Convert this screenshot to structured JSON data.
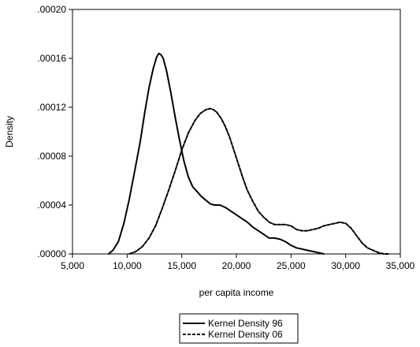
{
  "chart_data": {
    "type": "line",
    "title": "",
    "xlabel": "per capita income",
    "ylabel": "Density",
    "xlim": [
      5000,
      35000
    ],
    "ylim": [
      0,
      0.0002
    ],
    "x_ticks": [
      5000,
      10000,
      15000,
      20000,
      25000,
      30000,
      35000
    ],
    "x_tick_labels": [
      "5,000",
      "10,000",
      "15,000",
      "20,000",
      "25,000",
      "30,000",
      "35,000"
    ],
    "y_ticks": [
      0,
      4e-05,
      8e-05,
      0.00012,
      0.00016,
      0.0002
    ],
    "y_tick_labels": [
      ".00000",
      ".00004",
      ".00008",
      ".00012",
      ".00016",
      ".00020"
    ],
    "grid": false,
    "legend_position": "bottom-center",
    "series": [
      {
        "name": "Kernel Density 96",
        "style": "solid",
        "color": "#000000",
        "x": [
          8300,
          8700,
          9200,
          9700,
          10200,
          10700,
          11200,
          11600,
          12000,
          12400,
          12700,
          12900,
          13100,
          13300,
          13600,
          14000,
          14400,
          14800,
          15200,
          15600,
          16000,
          16400,
          16800,
          17200,
          17600,
          18000,
          18500,
          19000,
          19500,
          20000,
          20500,
          21000,
          21500,
          22000,
          22500,
          23000,
          23500,
          24000,
          24500,
          25000,
          25500,
          26000,
          26500,
          27000,
          27500,
          28000
        ],
        "y": [
          0,
          3e-06,
          1e-05,
          2.5e-05,
          4.5e-05,
          6.8e-05,
          9.2e-05,
          0.000115,
          0.000136,
          0.000152,
          0.000161,
          0.000164,
          0.000163,
          0.00016,
          0.00015,
          0.000132,
          0.000112,
          9.3e-05,
          7.6e-05,
          6.3e-05,
          5.5e-05,
          5.1e-05,
          4.7e-05,
          4.4e-05,
          4.1e-05,
          4e-05,
          4e-05,
          3.8e-05,
          3.5e-05,
          3.2e-05,
          2.9e-05,
          2.6e-05,
          2.2e-05,
          1.9e-05,
          1.6e-05,
          1.3e-05,
          1.3e-05,
          1.2e-05,
          1e-05,
          7e-06,
          5e-06,
          4e-06,
          3e-06,
          2e-06,
          1e-06,
          0
        ]
      },
      {
        "name": "Kernel Density 06",
        "style": "dashed",
        "color": "#000000",
        "x": [
          10200,
          10800,
          11400,
          12000,
          12600,
          13200,
          13800,
          14400,
          15000,
          15600,
          16200,
          16700,
          17200,
          17600,
          17900,
          18200,
          18600,
          19000,
          19400,
          19800,
          20200,
          20600,
          21000,
          21500,
          22000,
          22500,
          23000,
          23500,
          24000,
          24500,
          25000,
          25500,
          26000,
          26500,
          27000,
          27500,
          28000,
          28500,
          29000,
          29500,
          30000,
          30500,
          31000,
          31500,
          32000,
          32500,
          33000,
          33500,
          33900
        ],
        "y": [
          0,
          2e-06,
          6e-06,
          1.3e-05,
          2.3e-05,
          3.7e-05,
          5.2e-05,
          6.8e-05,
          8.5e-05,
          9.9e-05,
          0.000109,
          0.000115,
          0.000118,
          0.000119,
          0.000118,
          0.000116,
          0.000111,
          0.000104,
          9.5e-05,
          8.4e-05,
          7.3e-05,
          6.2e-05,
          5.2e-05,
          4.3e-05,
          3.5e-05,
          3e-05,
          2.6e-05,
          2.4e-05,
          2.4e-05,
          2.4e-05,
          2.3e-05,
          2e-05,
          1.9e-05,
          1.9e-05,
          2e-05,
          2.1e-05,
          2.3e-05,
          2.4e-05,
          2.5e-05,
          2.6e-05,
          2.5e-05,
          2.1e-05,
          1.5e-05,
          9e-06,
          5e-06,
          3e-06,
          1e-06,
          0,
          0
        ]
      }
    ]
  }
}
